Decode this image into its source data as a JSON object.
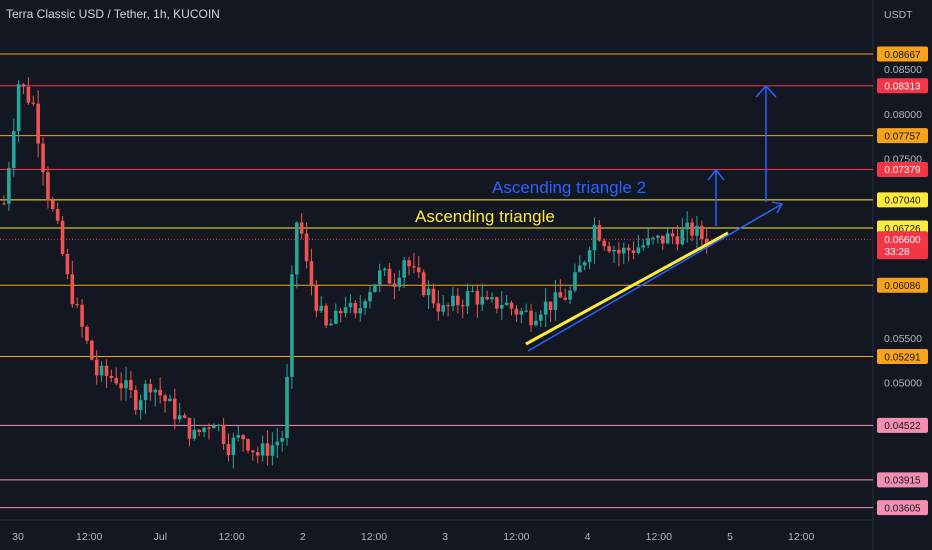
{
  "header": {
    "title": "Terra Classic USD / Tether, 1h, KUCOIN",
    "currency": "USDT"
  },
  "colors": {
    "background": "#131722",
    "up": "#26a69a",
    "down": "#ef5350",
    "orange_line": "#f7a21b",
    "red_line": "#f23645",
    "yellow_line": "#ffeb3b",
    "pink_line": "#f48fb1",
    "blue_annotation": "#2962ff"
  },
  "chart_data": {
    "type": "candlestick",
    "title": "Terra Classic USD / Tether, 1h, KUCOIN",
    "x_ticks": [
      "30",
      "12:00",
      "Jul",
      "12:00",
      "2",
      "12:00",
      "3",
      "12:00",
      "4",
      "12:00",
      "5",
      "12:00"
    ],
    "y_ticks": [
      "0.08500",
      "0.08000",
      "0.07500",
      "0.05500",
      "0.05000"
    ],
    "ylim": [
      0.0355,
      0.0905
    ],
    "current_price": {
      "value": "0.06600",
      "countdown": "33:28"
    },
    "levels": [
      {
        "label": "0.08667",
        "value": 0.08667,
        "kind": "orange"
      },
      {
        "label": "0.08313",
        "value": 0.08313,
        "kind": "red"
      },
      {
        "label": "0.07757",
        "value": 0.07757,
        "kind": "orange"
      },
      {
        "label": "0.07379",
        "value": 0.07379,
        "kind": "red"
      },
      {
        "label": "0.07040",
        "value": 0.0704,
        "kind": "yellow"
      },
      {
        "label": "0.06726",
        "value": 0.06726,
        "kind": "yellow"
      },
      {
        "label": "0.06086",
        "value": 0.06086,
        "kind": "orange"
      },
      {
        "label": "0.05291",
        "value": 0.05291,
        "kind": "orange"
      },
      {
        "label": "0.04522",
        "value": 0.04522,
        "kind": "pink"
      },
      {
        "label": "0.03915",
        "value": 0.03915,
        "kind": "pink"
      },
      {
        "label": "0.03605",
        "value": 0.03605,
        "kind": "pink"
      }
    ],
    "annotations": [
      {
        "text": "Ascending triangle",
        "color": "#ffeb3b"
      },
      {
        "text": "Ascending triangle 2",
        "color": "#2962ff"
      }
    ],
    "anchors": [
      [
        0,
        0.07
      ],
      [
        3,
        0.0835
      ],
      [
        6,
        0.081
      ],
      [
        9,
        0.071
      ],
      [
        11,
        0.067
      ],
      [
        13,
        0.0615
      ],
      [
        16,
        0.056
      ],
      [
        19,
        0.051
      ],
      [
        23,
        0.0505
      ],
      [
        27,
        0.048
      ],
      [
        30,
        0.05
      ],
      [
        33,
        0.048
      ],
      [
        36,
        0.046
      ],
      [
        39,
        0.044
      ],
      [
        43,
        0.046
      ],
      [
        46,
        0.043
      ],
      [
        49,
        0.044
      ],
      [
        52,
        0.042
      ],
      [
        55,
        0.043
      ],
      [
        57,
        0.044
      ],
      [
        58,
        0.05
      ],
      [
        59,
        0.061
      ],
      [
        60,
        0.068
      ],
      [
        61,
        0.0665
      ],
      [
        62,
        0.063
      ],
      [
        64,
        0.059
      ],
      [
        66,
        0.056
      ],
      [
        68,
        0.057
      ],
      [
        70,
        0.059
      ],
      [
        72,
        0.057
      ],
      [
        74,
        0.06
      ],
      [
        77,
        0.062
      ],
      [
        80,
        0.0615
      ],
      [
        82,
        0.064
      ],
      [
        84,
        0.062
      ],
      [
        87,
        0.06
      ],
      [
        90,
        0.058
      ],
      [
        93,
        0.059
      ],
      [
        96,
        0.06
      ],
      [
        99,
        0.0585
      ],
      [
        102,
        0.059
      ],
      [
        105,
        0.058
      ],
      [
        108,
        0.0575
      ],
      [
        110,
        0.0585
      ],
      [
        113,
        0.059
      ],
      [
        116,
        0.06
      ],
      [
        119,
        0.064
      ],
      [
        121,
        0.0675
      ],
      [
        123,
        0.066
      ],
      [
        126,
        0.0645
      ],
      [
        129,
        0.065
      ],
      [
        132,
        0.0655
      ],
      [
        135,
        0.066
      ],
      [
        138,
        0.0665
      ],
      [
        141,
        0.067
      ],
      [
        143,
        0.0662
      ],
      [
        144,
        0.066
      ]
    ]
  }
}
